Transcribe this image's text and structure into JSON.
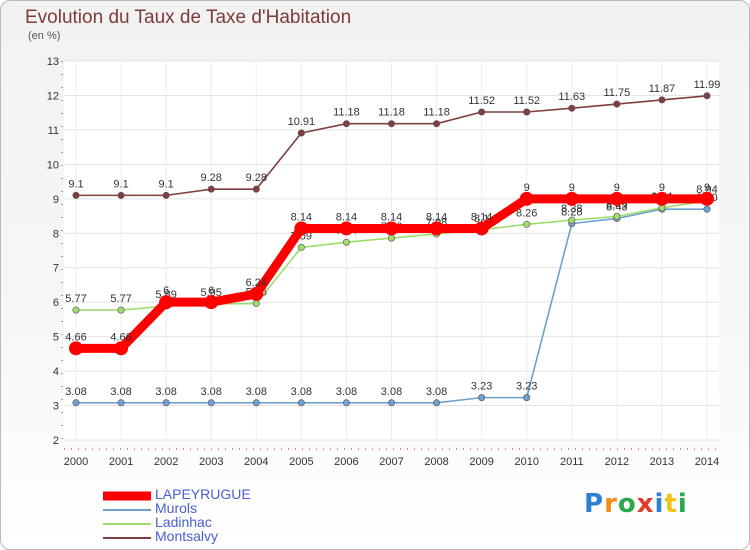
{
  "page": {
    "title": "Evolution du Taux de Taxe d'Habitation",
    "subtitle": "(en %)"
  },
  "logo": {
    "text": "Proxiti",
    "colors": [
      "#2e7fd6",
      "#f28c1a",
      "#2aa84a",
      "#e03c2a",
      "#2e7fd6",
      "#f2c21a",
      "#2aa84a"
    ]
  },
  "chart_data": {
    "type": "line",
    "title": "Evolution du Taux de Taxe d'Habitation",
    "ylabel": "(en %)",
    "xlabel": "",
    "x": [
      "2000",
      "2001",
      "2002",
      "2003",
      "2004",
      "2005",
      "2006",
      "2007",
      "2008",
      "2009",
      "2010",
      "2011",
      "2012",
      "2013",
      "2014"
    ],
    "ylim": [
      2,
      13
    ],
    "yticks": [
      "2",
      "3",
      "4",
      "5",
      "6",
      "7",
      "8",
      "9",
      "10",
      "11",
      "12",
      "13"
    ],
    "grid": true,
    "legend_position": "bottom-left",
    "series": [
      {
        "name": "LAPEYRUGUE",
        "color": "#ff0000",
        "weight": "thick",
        "values": [
          4.66,
          4.66,
          6,
          6,
          6.24,
          8.14,
          8.14,
          8.14,
          8.14,
          8.14,
          9,
          9,
          9,
          9,
          9
        ],
        "labels": [
          "4.66",
          "4.66",
          "6",
          "6",
          "6.24",
          "8.14",
          "8.14",
          "8.14",
          "8.14",
          "8.14",
          "9",
          "9",
          "9",
          "9",
          "9"
        ]
      },
      {
        "name": "Murols",
        "color": "#6ea0cd",
        "weight": "thin",
        "values": [
          3.08,
          3.08,
          3.08,
          3.08,
          3.08,
          3.08,
          3.08,
          3.08,
          3.08,
          3.23,
          3.23,
          8.28,
          8.43,
          8.7,
          8.7
        ],
        "labels": [
          "3.08",
          "3.08",
          "3.08",
          "3.08",
          "3.08",
          "3.08",
          "3.08",
          "3.08",
          "3.08",
          "3.23",
          "3.23",
          "8.28",
          "8.43",
          "8.70",
          "8.70"
        ]
      },
      {
        "name": "Ladinhac",
        "color": "#9fdc6e",
        "weight": "thin",
        "values": [
          5.77,
          5.77,
          5.89,
          5.95,
          5.96,
          7.59,
          7.74,
          7.86,
          7.98,
          8.1,
          8.26,
          8.38,
          8.49,
          8.74,
          8.94
        ],
        "labels": [
          "5.77",
          "5.77",
          "5.89",
          "5.95",
          "5.96",
          "7.59",
          "7.74",
          "7.86",
          "7.98",
          "8.1",
          "8.26",
          "8.38",
          "8.49",
          "8.74",
          "8.94"
        ]
      },
      {
        "name": "Montsalvy",
        "color": "#7f3f3f",
        "weight": "thin",
        "values": [
          9.1,
          9.1,
          9.1,
          9.28,
          9.28,
          10.91,
          11.18,
          11.18,
          11.18,
          11.52,
          11.52,
          11.63,
          11.75,
          11.87,
          11.99
        ],
        "labels": [
          "9.1",
          "9.1",
          "9.1",
          "9.28",
          "9.28",
          "10.91",
          "11.18",
          "11.18",
          "11.18",
          "11.52",
          "11.52",
          "11.63",
          "11.75",
          "11.87",
          "11.99"
        ]
      }
    ]
  }
}
